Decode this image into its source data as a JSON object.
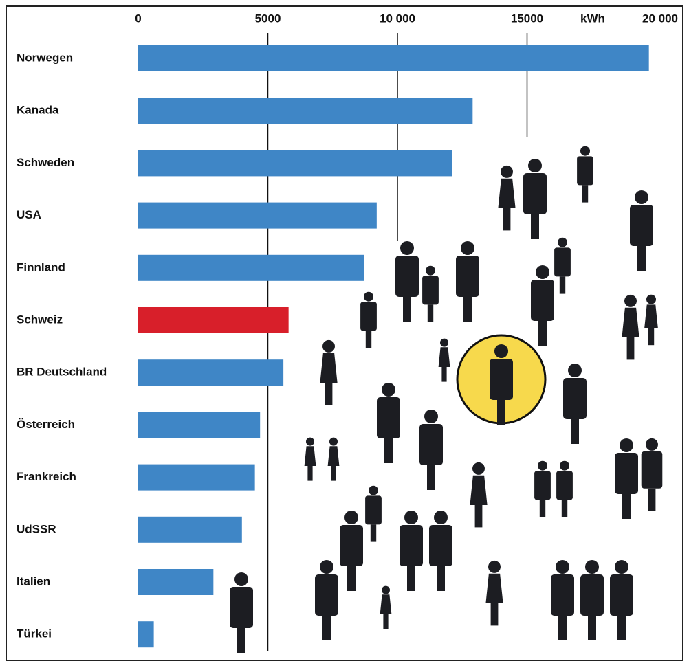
{
  "chart_data": {
    "type": "bar",
    "orientation": "horizontal",
    "x_label": "kWh",
    "categories": [
      "Norwegen",
      "Kanada",
      "Schweden",
      "USA",
      "Finnland",
      "Schweiz",
      "BR Deutschland",
      "Österreich",
      "Frankreich",
      "UdSSR",
      "Italien",
      "Türkei"
    ],
    "values": [
      19700,
      12900,
      12100,
      9200,
      8700,
      5800,
      5600,
      4700,
      4500,
      4000,
      2900,
      600
    ],
    "colors": [
      "#3f86c6",
      "#3f86c6",
      "#3f86c6",
      "#3f86c6",
      "#3f86c6",
      "#d81f2a",
      "#3f86c6",
      "#3f86c6",
      "#3f86c6",
      "#3f86c6",
      "#3f86c6",
      "#3f86c6"
    ],
    "xlim": [
      0,
      20000
    ],
    "xticks": [
      0,
      5000,
      {
        "value": 10000,
        "label": "10 000"
      },
      15000,
      {
        "value": 20000,
        "label": "20 000"
      }
    ],
    "grid": true
  }
}
